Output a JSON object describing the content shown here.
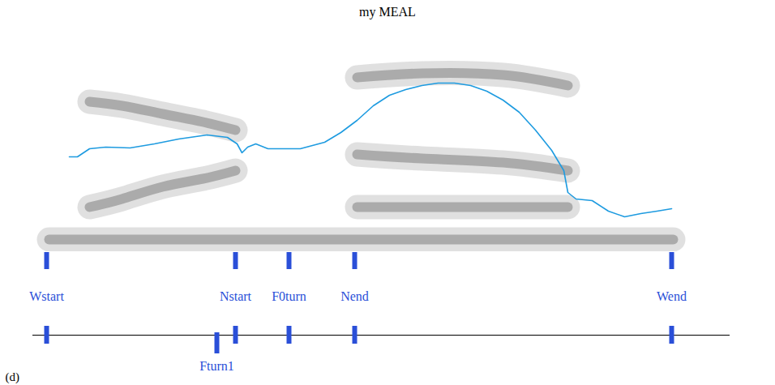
{
  "chart_data": {
    "type": "line",
    "title": "my MEAL",
    "x": [
      85,
      95,
      110,
      130,
      160,
      190,
      220,
      255,
      280,
      292,
      298,
      305,
      315,
      330,
      370,
      400,
      420,
      440,
      460,
      480,
      500,
      520,
      540,
      560,
      580,
      600,
      620,
      640,
      660,
      680,
      695,
      700,
      710,
      730,
      750,
      770,
      790,
      810,
      828
    ],
    "values": [
      117,
      117,
      127,
      129,
      128,
      133,
      139,
      144,
      141,
      133,
      122,
      129,
      133,
      127,
      127,
      135,
      147,
      162,
      180,
      193,
      200,
      205,
      208,
      208,
      205,
      198,
      187,
      172,
      150,
      125,
      100,
      73,
      65,
      63,
      50,
      43,
      47,
      50,
      53
    ],
    "color": "#1e9be0",
    "xlim": [
      40,
      900
    ],
    "ylim": [
      0,
      270
    ],
    "tick_labels": false,
    "formants": [
      {
        "x": [
          110,
          150,
          200,
          250,
          290
        ],
        "values": [
          55,
          65,
          80,
          90,
          100
        ]
      },
      {
        "x": [
          110,
          150,
          200,
          250,
          290
        ],
        "values": [
          185,
          180,
          170,
          160,
          150
        ]
      },
      {
        "x": [
          60,
          300,
          560,
          830
        ],
        "values": [
          15,
          15,
          15,
          15
        ]
      },
      {
        "x": [
          440,
          520,
          620,
          700
        ],
        "values": [
          215,
          220,
          218,
          205
        ]
      },
      {
        "x": [
          440,
          520,
          620,
          700
        ],
        "values": [
          120,
          115,
          110,
          100
        ]
      },
      {
        "x": [
          440,
          520,
          620,
          700
        ],
        "values": [
          55,
          55,
          55,
          55
        ]
      }
    ],
    "tiers": [
      {
        "marks": [
          {
            "x": 57,
            "label": "Wstart"
          },
          {
            "x": 290,
            "label": "Nstart"
          },
          {
            "x": 356,
            "label": "F0turn"
          },
          {
            "x": 437,
            "label": "Nend"
          },
          {
            "x": 828,
            "label": "Wend"
          }
        ]
      },
      {
        "marks": [
          {
            "x": 57
          },
          {
            "x": 290
          },
          {
            "x": 356
          },
          {
            "x": 437
          },
          {
            "x": 828
          },
          {
            "x": 267,
            "label": "Fturn1"
          }
        ]
      }
    ],
    "panel": "(d)"
  }
}
